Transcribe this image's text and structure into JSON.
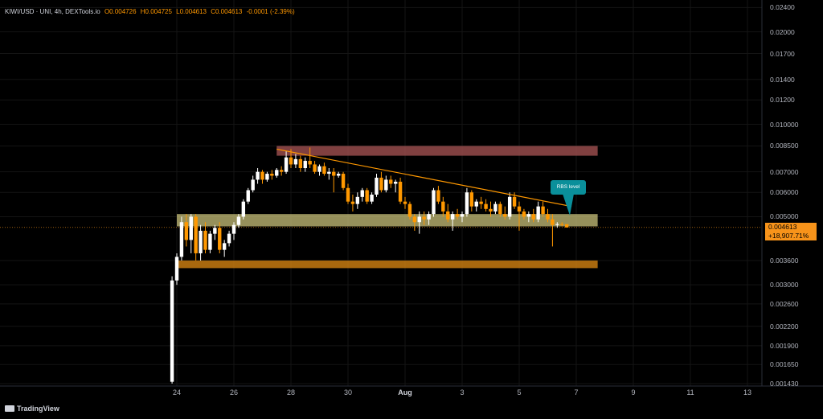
{
  "header": {
    "symbol": "KIWI/USD · UNI, 4h, DEXTools.io",
    "open": "O0.004726",
    "high": "H0.004725",
    "low": "L0.004613",
    "close": "C0.004613",
    "change": "-0.0001 (-2.39%)"
  },
  "price_axis": [
    "0.02400",
    "0.02000",
    "0.01700",
    "0.01400",
    "0.01200",
    "0.010000",
    "0.008500",
    "0.007000",
    "0.006000",
    "0.005000",
    "0.003600",
    "0.003000",
    "0.002600",
    "0.002200",
    "0.001900",
    "0.001650",
    "0.001430"
  ],
  "time_axis": [
    "24",
    "26",
    "28",
    "30",
    "Aug",
    "3",
    "5",
    "7",
    "9",
    "11",
    "13"
  ],
  "last_price": {
    "value": "0.004613",
    "change": "+18,907.71%"
  },
  "annotation": "RBS level",
  "branding": "TradingView",
  "colors": {
    "background": "#000000",
    "bull_candle": "#ffffff",
    "bear_candle": "#ff9800",
    "resistance_zone": "#a05050",
    "rbs_zone": "#c8c07a",
    "support_zone": "#c67a10",
    "trendline": "#ff9800",
    "note_bg": "#0a8f9a"
  },
  "chart_data": {
    "type": "candlestick",
    "title": "KIWI/USD · UNI, 4h, DEXTools.io",
    "y_scale": "log",
    "ylim": [
      0.00143,
      0.0242
    ],
    "x_range": [
      "Jul 21",
      "Aug 14"
    ],
    "zones": [
      {
        "name": "resistance",
        "low": 0.0079,
        "high": 0.0085,
        "from": "Jul 27 12:00",
        "to": "Aug 7 18:00"
      },
      {
        "name": "RBS level",
        "low": 0.00465,
        "high": 0.0051,
        "from": "Jul 24",
        "to": "Aug 7 18:00"
      },
      {
        "name": "support",
        "low": 0.0034,
        "high": 0.0036,
        "from": "Jul 24",
        "to": "Aug 7 18:00"
      }
    ],
    "trendline": {
      "from": [
        "Jul 27 12:00",
        0.0083
      ],
      "to": [
        "Aug 6 20:00",
        0.0054
      ]
    },
    "last_close": 0.004613,
    "candles": [
      {
        "t": "Jul 23 20:00",
        "o": 0.00145,
        "h": 0.0032,
        "l": 0.00143,
        "c": 0.0031
      },
      {
        "t": "Jul 24 00:00",
        "o": 0.0031,
        "h": 0.0038,
        "l": 0.003,
        "c": 0.0037
      },
      {
        "t": "Jul 24 04:00",
        "o": 0.0037,
        "h": 0.005,
        "l": 0.0036,
        "c": 0.0048
      },
      {
        "t": "Jul 24 08:00",
        "o": 0.0048,
        "h": 0.0051,
        "l": 0.004,
        "c": 0.0042
      },
      {
        "t": "Jul 24 12:00",
        "o": 0.0042,
        "h": 0.0051,
        "l": 0.0038,
        "c": 0.005
      },
      {
        "t": "Jul 24 16:00",
        "o": 0.005,
        "h": 0.0051,
        "l": 0.0036,
        "c": 0.0038
      },
      {
        "t": "Jul 24 20:00",
        "o": 0.0038,
        "h": 0.0047,
        "l": 0.0036,
        "c": 0.0045
      },
      {
        "t": "Jul 25 00:00",
        "o": 0.0045,
        "h": 0.0048,
        "l": 0.0038,
        "c": 0.0039
      },
      {
        "t": "Jul 25 04:00",
        "o": 0.0039,
        "h": 0.0045,
        "l": 0.0038,
        "c": 0.0044
      },
      {
        "t": "Jul 25 08:00",
        "o": 0.0044,
        "h": 0.0047,
        "l": 0.0042,
        "c": 0.0046
      },
      {
        "t": "Jul 25 12:00",
        "o": 0.0046,
        "h": 0.0048,
        "l": 0.0038,
        "c": 0.0039
      },
      {
        "t": "Jul 25 16:00",
        "o": 0.0039,
        "h": 0.0042,
        "l": 0.0037,
        "c": 0.0041
      },
      {
        "t": "Jul 25 20:00",
        "o": 0.0041,
        "h": 0.0045,
        "l": 0.004,
        "c": 0.0044
      },
      {
        "t": "Jul 26 00:00",
        "o": 0.0044,
        "h": 0.0048,
        "l": 0.0042,
        "c": 0.0047
      },
      {
        "t": "Jul 26 04:00",
        "o": 0.0047,
        "h": 0.0051,
        "l": 0.0046,
        "c": 0.005
      },
      {
        "t": "Jul 26 08:00",
        "o": 0.005,
        "h": 0.0057,
        "l": 0.0049,
        "c": 0.0056
      },
      {
        "t": "Jul 26 12:00",
        "o": 0.0056,
        "h": 0.0062,
        "l": 0.0055,
        "c": 0.0061
      },
      {
        "t": "Jul 26 16:00",
        "o": 0.0061,
        "h": 0.0068,
        "l": 0.006,
        "c": 0.0066
      },
      {
        "t": "Jul 26 20:00",
        "o": 0.0066,
        "h": 0.0072,
        "l": 0.0064,
        "c": 0.007
      },
      {
        "t": "Jul 27 00:00",
        "o": 0.007,
        "h": 0.0071,
        "l": 0.0064,
        "c": 0.0066
      },
      {
        "t": "Jul 27 04:00",
        "o": 0.0066,
        "h": 0.007,
        "l": 0.0065,
        "c": 0.0069
      },
      {
        "t": "Jul 27 08:00",
        "o": 0.0069,
        "h": 0.0071,
        "l": 0.0066,
        "c": 0.0068
      },
      {
        "t": "Jul 27 12:00",
        "o": 0.0068,
        "h": 0.0072,
        "l": 0.0067,
        "c": 0.0071
      },
      {
        "t": "Jul 27 16:00",
        "o": 0.0071,
        "h": 0.0073,
        "l": 0.0068,
        "c": 0.007
      },
      {
        "t": "Jul 27 20:00",
        "o": 0.007,
        "h": 0.0082,
        "l": 0.0069,
        "c": 0.0078
      },
      {
        "t": "Jul 28 00:00",
        "o": 0.0078,
        "h": 0.0083,
        "l": 0.0072,
        "c": 0.0074
      },
      {
        "t": "Jul 28 04:00",
        "o": 0.0074,
        "h": 0.008,
        "l": 0.0072,
        "c": 0.0077
      },
      {
        "t": "Jul 28 08:00",
        "o": 0.0077,
        "h": 0.0079,
        "l": 0.007,
        "c": 0.0072
      },
      {
        "t": "Jul 28 12:00",
        "o": 0.0072,
        "h": 0.0078,
        "l": 0.007,
        "c": 0.0076
      },
      {
        "t": "Jul 28 16:00",
        "o": 0.0076,
        "h": 0.0084,
        "l": 0.0072,
        "c": 0.0074
      },
      {
        "t": "Jul 28 20:00",
        "o": 0.0074,
        "h": 0.0076,
        "l": 0.0069,
        "c": 0.007
      },
      {
        "t": "Jul 29 00:00",
        "o": 0.007,
        "h": 0.0074,
        "l": 0.0068,
        "c": 0.0073
      },
      {
        "t": "Jul 29 04:00",
        "o": 0.0073,
        "h": 0.0075,
        "l": 0.0068,
        "c": 0.0069
      },
      {
        "t": "Jul 29 08:00",
        "o": 0.0069,
        "h": 0.0072,
        "l": 0.0066,
        "c": 0.007
      },
      {
        "t": "Jul 29 12:00",
        "o": 0.007,
        "h": 0.0072,
        "l": 0.006,
        "c": 0.0068
      },
      {
        "t": "Jul 29 16:00",
        "o": 0.0068,
        "h": 0.007,
        "l": 0.0067,
        "c": 0.0069
      },
      {
        "t": "Jul 29 20:00",
        "o": 0.0069,
        "h": 0.007,
        "l": 0.0061,
        "c": 0.0062
      },
      {
        "t": "Jul 30 00:00",
        "o": 0.0062,
        "h": 0.0064,
        "l": 0.0055,
        "c": 0.0056
      },
      {
        "t": "Jul 30 04:00",
        "o": 0.0056,
        "h": 0.0059,
        "l": 0.0052,
        "c": 0.0055
      },
      {
        "t": "Jul 30 08:00",
        "o": 0.0055,
        "h": 0.006,
        "l": 0.0053,
        "c": 0.0058
      },
      {
        "t": "Jul 30 12:00",
        "o": 0.0058,
        "h": 0.0062,
        "l": 0.0056,
        "c": 0.0061
      },
      {
        "t": "Jul 30 16:00",
        "o": 0.0061,
        "h": 0.0062,
        "l": 0.0055,
        "c": 0.0056
      },
      {
        "t": "Jul 30 20:00",
        "o": 0.0056,
        "h": 0.006,
        "l": 0.0055,
        "c": 0.0059
      },
      {
        "t": "Jul 31 00:00",
        "o": 0.0059,
        "h": 0.0069,
        "l": 0.0058,
        "c": 0.0067
      },
      {
        "t": "Jul 31 04:00",
        "o": 0.0067,
        "h": 0.007,
        "l": 0.006,
        "c": 0.0061
      },
      {
        "t": "Jul 31 08:00",
        "o": 0.0061,
        "h": 0.0068,
        "l": 0.006,
        "c": 0.0066
      },
      {
        "t": "Jul 31 12:00",
        "o": 0.0066,
        "h": 0.0068,
        "l": 0.0062,
        "c": 0.0064
      },
      {
        "t": "Jul 31 16:00",
        "o": 0.0064,
        "h": 0.0066,
        "l": 0.006,
        "c": 0.0065
      },
      {
        "t": "Jul 31 20:00",
        "o": 0.0065,
        "h": 0.0067,
        "l": 0.0055,
        "c": 0.0056
      },
      {
        "t": "Aug 1 00:00",
        "o": 0.0056,
        "h": 0.0058,
        "l": 0.0053,
        "c": 0.0055
      },
      {
        "t": "Aug 1 04:00",
        "o": 0.0055,
        "h": 0.0056,
        "l": 0.0049,
        "c": 0.005
      },
      {
        "t": "Aug 1 08:00",
        "o": 0.005,
        "h": 0.0051,
        "l": 0.0045,
        "c": 0.0048
      },
      {
        "t": "Aug 1 12:00",
        "o": 0.0048,
        "h": 0.0052,
        "l": 0.0044,
        "c": 0.005
      },
      {
        "t": "Aug 1 16:00",
        "o": 0.005,
        "h": 0.0052,
        "l": 0.0047,
        "c": 0.0049
      },
      {
        "t": "Aug 1 20:00",
        "o": 0.0049,
        "h": 0.0052,
        "l": 0.0047,
        "c": 0.0051
      },
      {
        "t": "Aug 2 00:00",
        "o": 0.0051,
        "h": 0.0062,
        "l": 0.005,
        "c": 0.0061
      },
      {
        "t": "Aug 2 04:00",
        "o": 0.0061,
        "h": 0.0063,
        "l": 0.0055,
        "c": 0.0056
      },
      {
        "t": "Aug 2 08:00",
        "o": 0.0056,
        "h": 0.0058,
        "l": 0.005,
        "c": 0.0052
      },
      {
        "t": "Aug 2 12:00",
        "o": 0.0052,
        "h": 0.0055,
        "l": 0.0048,
        "c": 0.0049
      },
      {
        "t": "Aug 2 16:00",
        "o": 0.0049,
        "h": 0.0052,
        "l": 0.0045,
        "c": 0.0051
      },
      {
        "t": "Aug 2 20:00",
        "o": 0.0051,
        "h": 0.0053,
        "l": 0.0049,
        "c": 0.005
      },
      {
        "t": "Aug 3 00:00",
        "o": 0.005,
        "h": 0.0052,
        "l": 0.0048,
        "c": 0.0051
      },
      {
        "t": "Aug 3 04:00",
        "o": 0.0051,
        "h": 0.0062,
        "l": 0.005,
        "c": 0.006
      },
      {
        "t": "Aug 3 08:00",
        "o": 0.006,
        "h": 0.0061,
        "l": 0.0052,
        "c": 0.0054
      },
      {
        "t": "Aug 3 12:00",
        "o": 0.0054,
        "h": 0.0057,
        "l": 0.0052,
        "c": 0.0056
      },
      {
        "t": "Aug 3 16:00",
        "o": 0.0056,
        "h": 0.0058,
        "l": 0.0053,
        "c": 0.0055
      },
      {
        "t": "Aug 3 20:00",
        "o": 0.0055,
        "h": 0.0057,
        "l": 0.0052,
        "c": 0.0053
      },
      {
        "t": "Aug 4 00:00",
        "o": 0.0053,
        "h": 0.0056,
        "l": 0.005,
        "c": 0.0052
      },
      {
        "t": "Aug 4 04:00",
        "o": 0.0052,
        "h": 0.0056,
        "l": 0.0051,
        "c": 0.0055
      },
      {
        "t": "Aug 4 08:00",
        "o": 0.0055,
        "h": 0.0056,
        "l": 0.005,
        "c": 0.0051
      },
      {
        "t": "Aug 4 12:00",
        "o": 0.0051,
        "h": 0.0054,
        "l": 0.0049,
        "c": 0.005
      },
      {
        "t": "Aug 4 16:00",
        "o": 0.005,
        "h": 0.006,
        "l": 0.0049,
        "c": 0.0058
      },
      {
        "t": "Aug 4 20:00",
        "o": 0.0058,
        "h": 0.006,
        "l": 0.0053,
        "c": 0.0054
      },
      {
        "t": "Aug 5 00:00",
        "o": 0.0054,
        "h": 0.0056,
        "l": 0.0045,
        "c": 0.0052
      },
      {
        "t": "Aug 5 04:00",
        "o": 0.0052,
        "h": 0.0053,
        "l": 0.0049,
        "c": 0.005
      },
      {
        "t": "Aug 5 08:00",
        "o": 0.005,
        "h": 0.0052,
        "l": 0.0048,
        "c": 0.0051
      },
      {
        "t": "Aug 5 12:00",
        "o": 0.0051,
        "h": 0.0053,
        "l": 0.0048,
        "c": 0.0049
      },
      {
        "t": "Aug 5 16:00",
        "o": 0.0049,
        "h": 0.0056,
        "l": 0.0048,
        "c": 0.0054
      },
      {
        "t": "Aug 5 20:00",
        "o": 0.0054,
        "h": 0.0056,
        "l": 0.005,
        "c": 0.0051
      },
      {
        "t": "Aug 6 00:00",
        "o": 0.0051,
        "h": 0.0053,
        "l": 0.0048,
        "c": 0.0049
      },
      {
        "t": "Aug 6 04:00",
        "o": 0.0049,
        "h": 0.0051,
        "l": 0.004,
        "c": 0.0047
      },
      {
        "t": "Aug 6 08:00",
        "o": 0.0047,
        "h": 0.0048,
        "l": 0.0046,
        "c": 0.00473
      },
      {
        "t": "Aug 6 12:00",
        "o": 0.00473,
        "h": 0.0048,
        "l": 0.00465,
        "c": 0.0047
      },
      {
        "t": "Aug 6 16:00",
        "o": 0.004726,
        "h": 0.004725,
        "l": 0.004613,
        "c": 0.004613
      }
    ]
  }
}
